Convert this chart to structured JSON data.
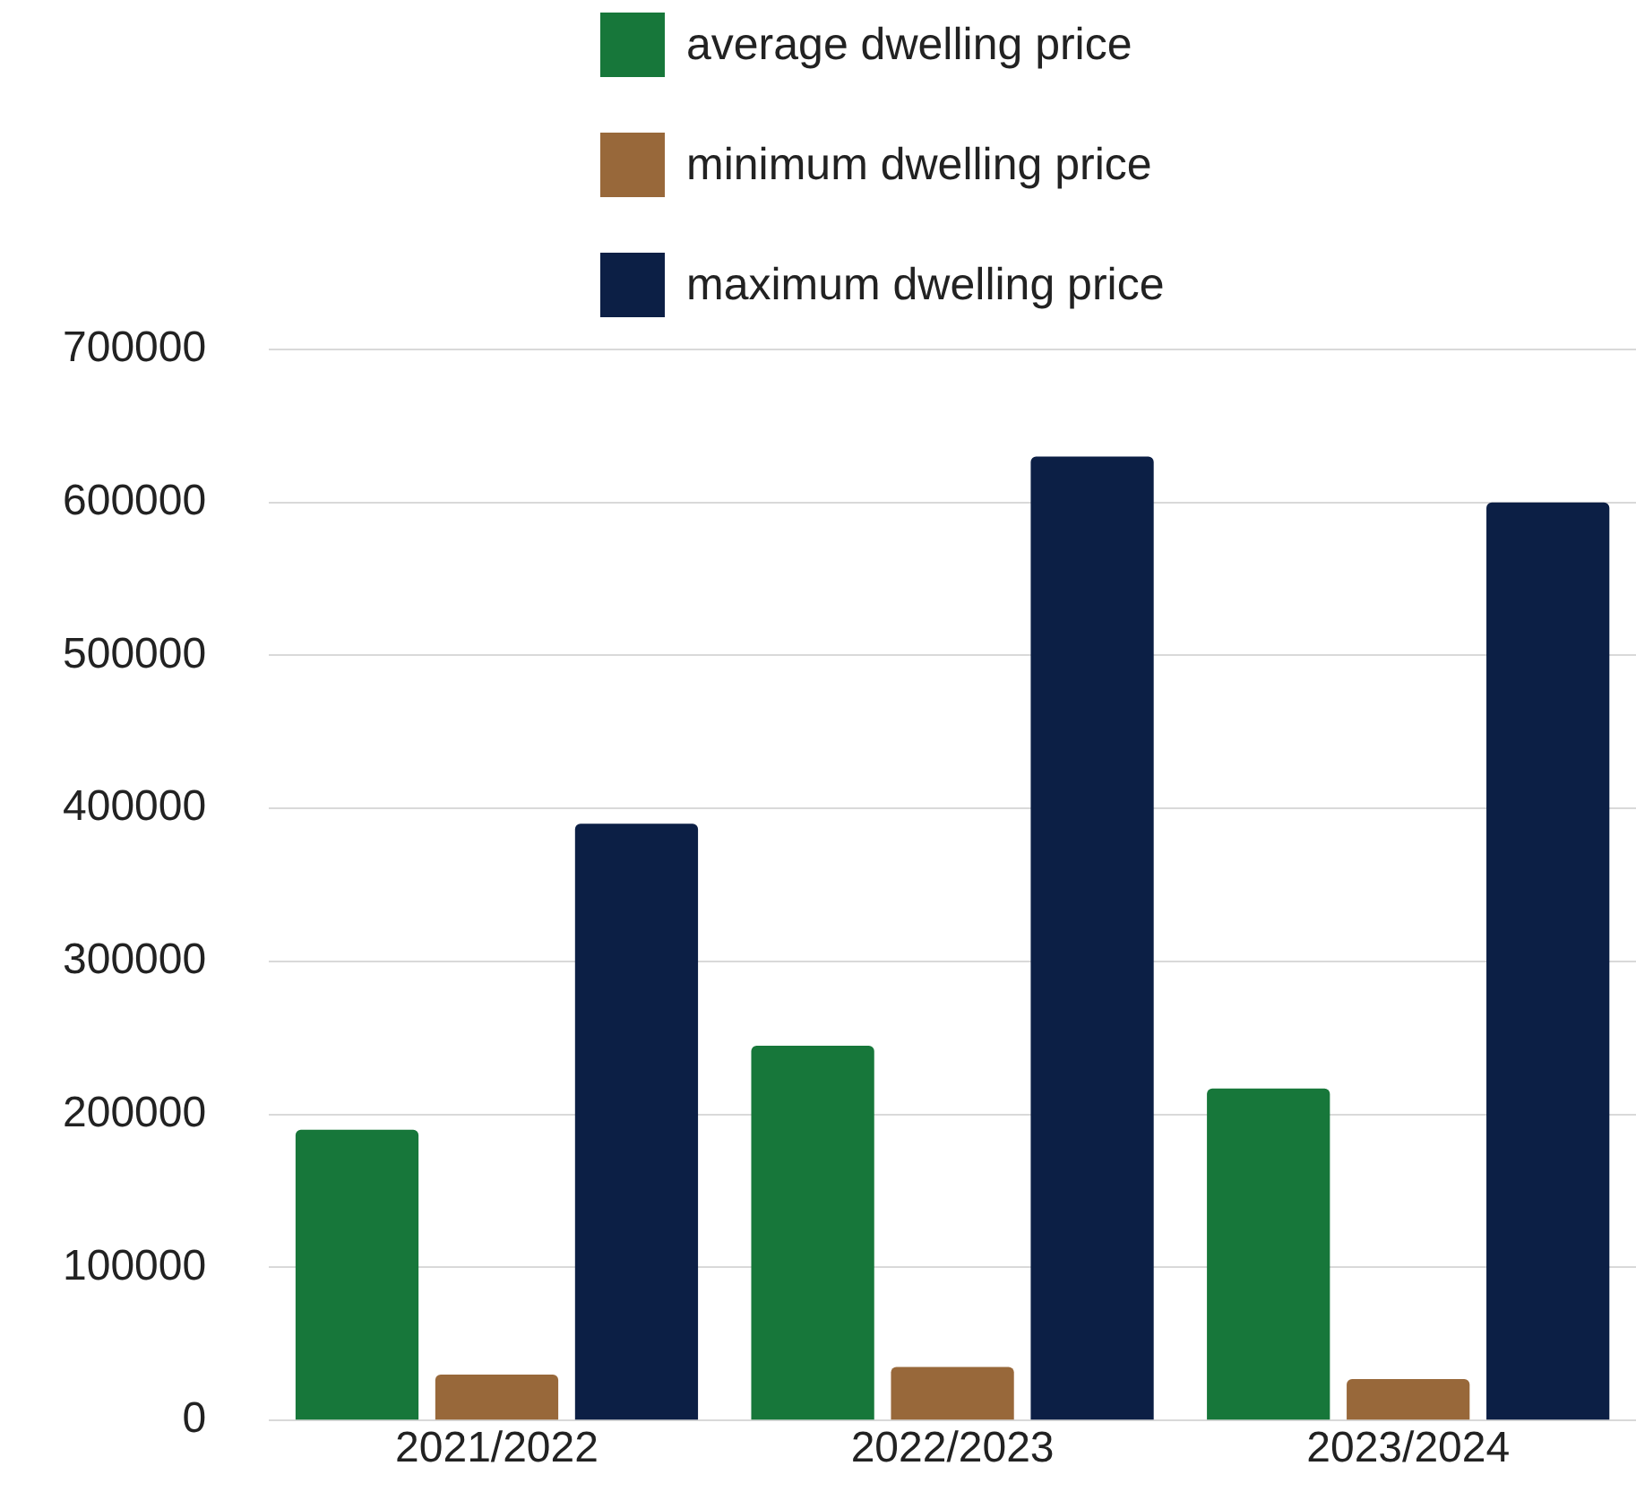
{
  "chart_data": {
    "type": "bar",
    "categories": [
      "2021/2022",
      "2022/2023",
      "2023/2024"
    ],
    "series": [
      {
        "name": "average dwelling price",
        "color": "#17773a",
        "values": [
          190000,
          245000,
          217000
        ]
      },
      {
        "name": "minimum dwelling price",
        "color": "#98683a",
        "values": [
          30000,
          35000,
          27000
        ]
      },
      {
        "name": "maximum dwelling price",
        "color": "#0c1f45",
        "values": [
          390000,
          630000,
          600000
        ]
      }
    ],
    "ylim": [
      0,
      700000
    ],
    "yticks": [
      0,
      100000,
      200000,
      300000,
      400000,
      500000,
      600000,
      700000
    ],
    "grid": "y",
    "legend": "top"
  }
}
